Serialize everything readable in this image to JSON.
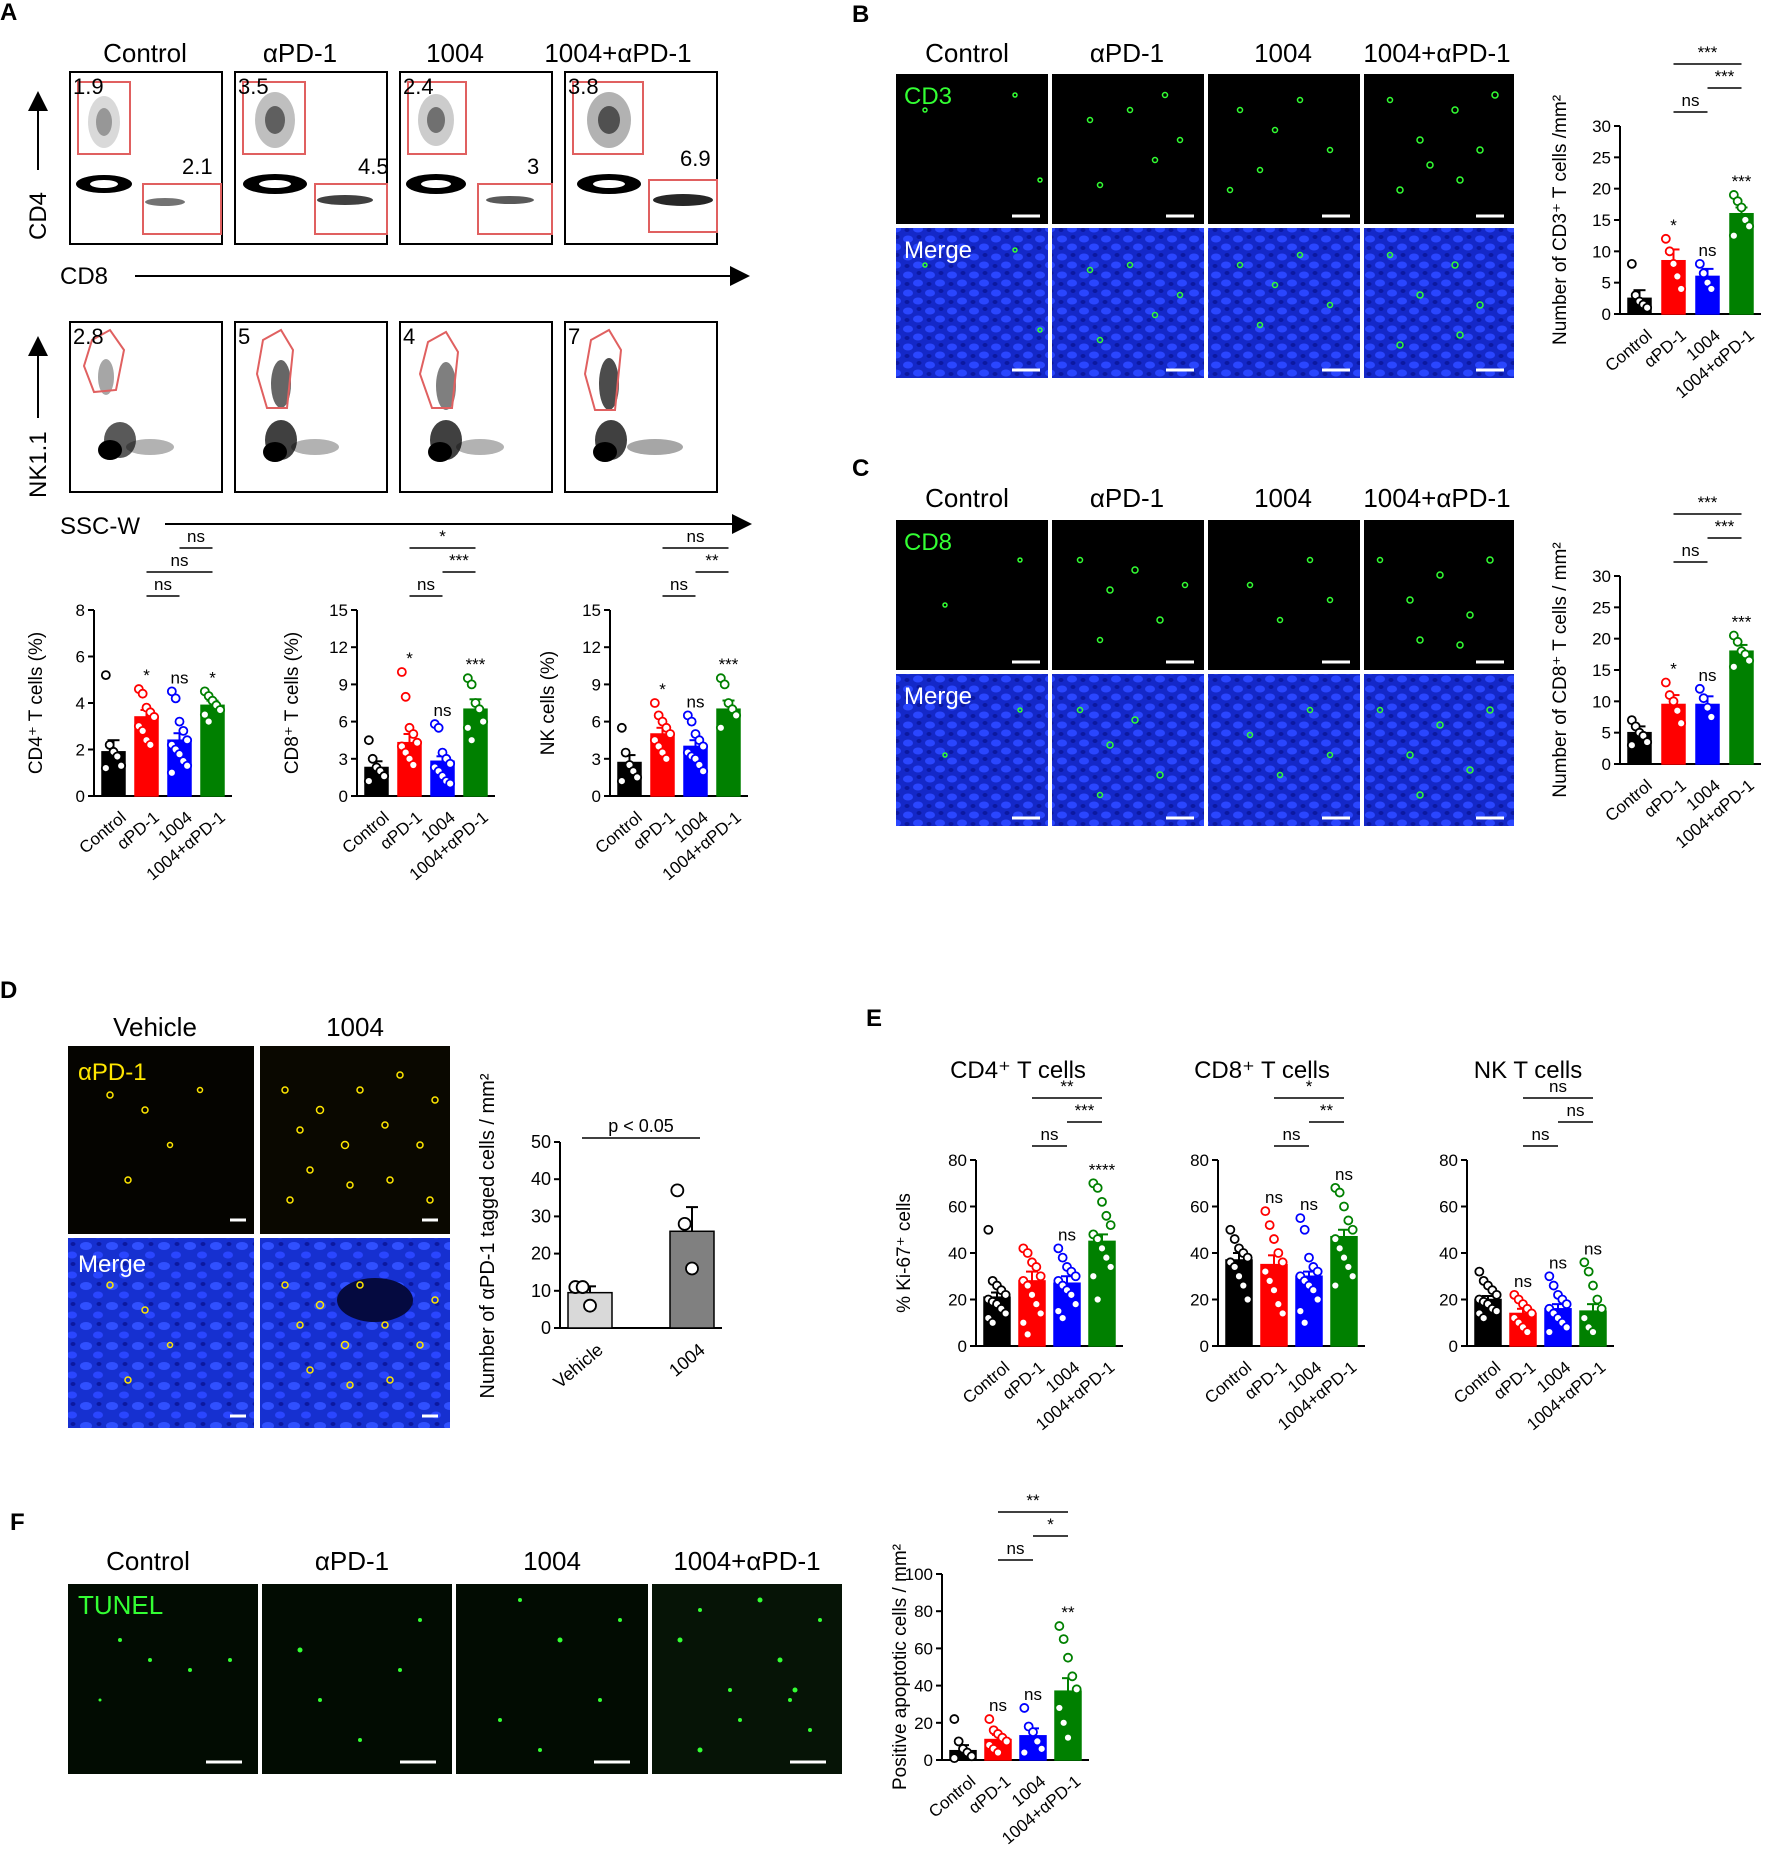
{
  "panels": {
    "A": {
      "letter": "A",
      "groups": [
        "Control",
        "αPD-1",
        "1004",
        "1004+αPD-1"
      ],
      "row1": {
        "y_label": "CD4",
        "x_label": "CD8",
        "cd4_pct": [
          "1.9",
          "3.5",
          "2.4",
          "3.8"
        ],
        "cd8_pct": [
          "2.1",
          "4.5",
          "3",
          "6.9"
        ]
      },
      "row2": {
        "y_label": "NK1.1",
        "x_label": "SSC-W",
        "nk_pct": [
          "2.8",
          "5",
          "4",
          "7"
        ]
      }
    },
    "B": {
      "letter": "B",
      "groups": [
        "Control",
        "αPD-1",
        "1004",
        "1004+αPD-1"
      ],
      "stain": "CD3",
      "merge": "Merge"
    },
    "C": {
      "letter": "C",
      "groups": [
        "Control",
        "αPD-1",
        "1004",
        "1004+αPD-1"
      ],
      "stain": "CD8",
      "merge": "Merge"
    },
    "D": {
      "letter": "D",
      "groups": [
        "Vehicle",
        "1004"
      ],
      "stain": "αPD-1",
      "merge": "Merge"
    },
    "E": {
      "letter": "E"
    },
    "F": {
      "letter": "F",
      "groups": [
        "Control",
        "αPD-1",
        "1004",
        "1004+αPD-1"
      ],
      "stain": "TUNEL"
    }
  },
  "colors": {
    "control": "#000000",
    "aPD1": "#ff0000",
    "c1004": "#0000ff",
    "combo": "#008000",
    "vehicle": "#d9d9d9",
    "c1004_gray": "#808080",
    "gate": "#e06060",
    "nuclei": "#1a2fd0",
    "green_stain": "#33ff33",
    "yellow_stain": "#ffe600"
  },
  "chart_data": [
    {
      "id": "A-CD4",
      "type": "bar",
      "categories": [
        "Control",
        "αPD-1",
        "1004",
        "1004+αPD-1"
      ],
      "values": [
        1.9,
        3.4,
        2.4,
        3.9
      ],
      "errors": [
        0.5,
        0.3,
        0.3,
        0.2
      ],
      "ylabel": "CD4⁺ T cells (%)",
      "ylim": [
        0,
        8
      ],
      "yticks": [
        "0",
        "2",
        "4",
        "6",
        "8"
      ],
      "stars": [
        "",
        "*",
        "ns",
        "*"
      ],
      "brackets": [
        {
          "from": 2,
          "to": 3,
          "label": "ns",
          "level": 3
        },
        {
          "from": 1,
          "to": 3,
          "label": "ns",
          "level": 2
        },
        {
          "from": 1,
          "to": 2,
          "label": "ns",
          "level": 1
        }
      ],
      "points": [
        [
          5.2,
          2.2,
          1.9,
          1.7,
          1.3,
          1.2
        ],
        [
          4.6,
          4.4,
          3.8,
          3.6,
          3.4,
          3.0,
          2.8,
          2.4,
          2.2
        ],
        [
          4.5,
          4.2,
          3.2,
          2.8,
          2.4,
          2.2,
          2.0,
          1.8,
          1.5,
          1.3,
          1.0
        ],
        [
          4.5,
          4.3,
          4.1,
          3.9,
          3.7,
          3.5,
          3.2
        ]
      ]
    },
    {
      "id": "A-CD8",
      "type": "bar",
      "categories": [
        "Control",
        "αPD-1",
        "1004",
        "1004+αPD-1"
      ],
      "values": [
        2.3,
        4.3,
        2.8,
        7.0
      ],
      "errors": [
        0.5,
        0.7,
        0.4,
        0.8
      ],
      "ylabel": "CD8⁺ T cells (%)",
      "ylim": [
        0,
        15
      ],
      "yticks": [
        "0",
        "3",
        "6",
        "9",
        "12",
        "15"
      ],
      "stars": [
        "",
        "*",
        "ns",
        "***"
      ],
      "brackets": [
        {
          "from": 1,
          "to": 3,
          "label": "*",
          "level": 3
        },
        {
          "from": 2,
          "to": 3,
          "label": "***",
          "level": 2
        },
        {
          "from": 1,
          "to": 2,
          "label": "ns",
          "level": 1
        }
      ],
      "points": [
        [
          4.5,
          3.0,
          2.3,
          2.0,
          1.6,
          1.2
        ],
        [
          10.0,
          8.0,
          5.5,
          5.0,
          4.3,
          4.0,
          3.5,
          3.0,
          2.5
        ],
        [
          5.8,
          5.5,
          3.5,
          3.0,
          2.6,
          2.3,
          2.0,
          1.6,
          1.2,
          1.0
        ],
        [
          9.5,
          9.0,
          7.5,
          7.0,
          6.0,
          5.5,
          4.5
        ]
      ]
    },
    {
      "id": "A-NK",
      "type": "bar",
      "categories": [
        "Control",
        "αPD-1",
        "1004",
        "1004+αPD-1"
      ],
      "values": [
        2.7,
        5.0,
        4.0,
        7.0
      ],
      "errors": [
        0.6,
        0.5,
        0.5,
        0.7
      ],
      "ylabel": "NK cells (%)",
      "ylim": [
        0,
        15
      ],
      "yticks": [
        "0",
        "3",
        "6",
        "9",
        "12",
        "15"
      ],
      "stars": [
        "",
        "*",
        "ns",
        "***"
      ],
      "brackets": [
        {
          "from": 1,
          "to": 3,
          "label": "ns",
          "level": 3
        },
        {
          "from": 2,
          "to": 3,
          "label": "**",
          "level": 2
        },
        {
          "from": 1,
          "to": 2,
          "label": "ns",
          "level": 1
        }
      ],
      "points": [
        [
          5.5,
          3.5,
          2.5,
          2.0,
          1.5,
          1.2
        ],
        [
          7.5,
          6.5,
          6.0,
          5.5,
          5.0,
          4.5,
          4.0,
          3.5,
          3.0
        ],
        [
          6.5,
          6.0,
          5.0,
          4.5,
          4.0,
          3.5,
          3.2,
          3.0,
          2.5,
          2.0
        ],
        [
          9.5,
          9.0,
          7.5,
          7.0,
          6.5,
          5.5
        ]
      ]
    },
    {
      "id": "B-CD3",
      "type": "bar",
      "categories": [
        "Control",
        "αPD-1",
        "1004",
        "1004+αPD-1"
      ],
      "values": [
        2.5,
        8.5,
        6.0,
        16.0
      ],
      "errors": [
        1.3,
        1.8,
        1.2,
        1.0
      ],
      "ylabel": "Number of CD3⁺ T cells /mm²",
      "ylim": [
        0,
        30
      ],
      "yticks": [
        "0",
        "5",
        "10",
        "15",
        "20",
        "25",
        "30"
      ],
      "stars": [
        "",
        "*",
        "ns",
        "***"
      ],
      "brackets": [
        {
          "from": 1,
          "to": 3,
          "label": "***",
          "level": 3
        },
        {
          "from": 2,
          "to": 3,
          "label": "***",
          "level": 2
        },
        {
          "from": 1,
          "to": 2,
          "label": "ns",
          "level": 1
        }
      ],
      "points": [
        [
          8.0,
          3.0,
          2.0,
          1.5,
          1.0
        ],
        [
          12.0,
          10.0,
          8.0,
          6.0,
          4.0
        ],
        [
          8.0,
          6.5,
          5.0,
          4.0
        ],
        [
          19.0,
          18.0,
          17.0,
          15.0,
          14.0,
          12.5
        ]
      ]
    },
    {
      "id": "C-CD8",
      "type": "bar",
      "categories": [
        "Control",
        "αPD-1",
        "1004",
        "1004+αPD-1"
      ],
      "values": [
        5.0,
        9.5,
        9.5,
        18.0
      ],
      "errors": [
        1.0,
        1.5,
        1.3,
        1.0
      ],
      "ylabel": "Number of CD8⁺ T cells / mm²",
      "ylim": [
        0,
        30
      ],
      "yticks": [
        "0",
        "5",
        "10",
        "15",
        "20",
        "25",
        "30"
      ],
      "stars": [
        "",
        "*",
        "ns",
        "***"
      ],
      "brackets": [
        {
          "from": 1,
          "to": 3,
          "label": "***",
          "level": 3
        },
        {
          "from": 2,
          "to": 3,
          "label": "***",
          "level": 2
        },
        {
          "from": 1,
          "to": 2,
          "label": "ns",
          "level": 1
        }
      ],
      "points": [
        [
          7.0,
          6.0,
          5.0,
          4.5,
          3.5,
          3.0
        ],
        [
          13.0,
          11.0,
          10.0,
          8.5,
          6.5
        ],
        [
          12.0,
          10.5,
          9.0,
          7.5
        ],
        [
          20.5,
          19.5,
          18.0,
          17.5,
          16.5,
          15.5
        ]
      ]
    },
    {
      "id": "D-aPD1",
      "type": "bar",
      "categories": [
        "Vehicle",
        "1004"
      ],
      "values": [
        9.5,
        26.0
      ],
      "errors": [
        1.7,
        6.5
      ],
      "ylabel": "Number of αPD-1 tagged cells / mm²",
      "ylim": [
        0,
        50
      ],
      "yticks": [
        "0",
        "10",
        "20",
        "30",
        "40",
        "50"
      ],
      "stars": [
        "",
        ""
      ],
      "brackets": [
        {
          "from": 0,
          "to": 1,
          "label": "p < 0.05",
          "level": 1
        }
      ],
      "points": [
        [
          11.0,
          11.0,
          6.0
        ],
        [
          37.0,
          28.0,
          16.0
        ]
      ]
    },
    {
      "id": "E-CD4",
      "type": "bar",
      "title": "CD4⁺ T cells",
      "categories": [
        "Control",
        "αPD-1",
        "1004",
        "1004+αPD-1"
      ],
      "values": [
        21,
        28,
        27,
        45
      ],
      "errors": [
        2,
        4,
        3,
        3
      ],
      "ylabel": "% Ki-67⁺ cells",
      "ylim": [
        0,
        80
      ],
      "yticks": [
        "0",
        "20",
        "40",
        "60",
        "80"
      ],
      "stars": [
        "",
        "",
        "ns",
        "****"
      ],
      "brackets": [
        {
          "from": 1,
          "to": 3,
          "label": "**",
          "level": 3
        },
        {
          "from": 2,
          "to": 3,
          "label": "***",
          "level": 2
        },
        {
          "from": 1,
          "to": 2,
          "label": "ns",
          "level": 1
        }
      ],
      "points": [
        [
          50,
          28,
          26,
          24,
          22,
          20,
          19,
          18,
          16,
          14,
          12,
          10
        ],
        [
          42,
          40,
          36,
          34,
          30,
          28,
          26,
          22,
          18,
          14,
          10,
          5
        ],
        [
          42,
          38,
          34,
          32,
          30,
          28,
          26,
          24,
          22,
          18,
          15,
          12
        ],
        [
          70,
          68,
          62,
          56,
          52,
          48,
          46,
          42,
          38,
          34,
          30,
          20
        ]
      ]
    },
    {
      "id": "E-CD8",
      "type": "bar",
      "title": "CD8⁺ T cells",
      "categories": [
        "Control",
        "αPD-1",
        "1004",
        "1004+αPD-1"
      ],
      "values": [
        37,
        35,
        30,
        47
      ],
      "errors": [
        3,
        4,
        2,
        3
      ],
      "ylabel": "",
      "ylim": [
        0,
        80
      ],
      "yticks": [
        "0",
        "20",
        "40",
        "60",
        "80"
      ],
      "stars": [
        "",
        "ns",
        "ns",
        "ns"
      ],
      "brackets": [
        {
          "from": 1,
          "to": 3,
          "label": "*",
          "level": 3
        },
        {
          "from": 2,
          "to": 3,
          "label": "**",
          "level": 2
        },
        {
          "from": 1,
          "to": 2,
          "label": "ns",
          "level": 1
        }
      ],
      "points": [
        [
          50,
          46,
          42,
          40,
          38,
          36,
          34,
          30,
          26,
          20
        ],
        [
          58,
          52,
          46,
          40,
          36,
          32,
          28,
          24,
          18,
          14
        ],
        [
          55,
          50,
          38,
          34,
          32,
          30,
          28,
          26,
          24,
          20,
          15,
          10
        ],
        [
          68,
          66,
          60,
          54,
          50,
          46,
          42,
          38,
          34,
          30,
          26
        ]
      ]
    },
    {
      "id": "E-NK",
      "type": "bar",
      "title": "NK T cells",
      "categories": [
        "Control",
        "αPD-1",
        "1004",
        "1004+αPD-1"
      ],
      "values": [
        20,
        14,
        16,
        15
      ],
      "errors": [
        1.5,
        2,
        2,
        3
      ],
      "ylabel": "",
      "ylim": [
        0,
        80
      ],
      "yticks": [
        "0",
        "20",
        "40",
        "60",
        "80"
      ],
      "stars": [
        "",
        "ns",
        "ns",
        "ns"
      ],
      "brackets": [
        {
          "from": 1,
          "to": 3,
          "label": "ns",
          "level": 3
        },
        {
          "from": 2,
          "to": 3,
          "label": "ns",
          "level": 2
        },
        {
          "from": 1,
          "to": 2,
          "label": "ns",
          "level": 1
        }
      ],
      "points": [
        [
          32,
          28,
          26,
          24,
          22,
          20,
          19,
          18,
          16,
          15,
          14,
          12
        ],
        [
          22,
          20,
          18,
          16,
          14,
          12,
          10,
          8,
          6
        ],
        [
          30,
          26,
          22,
          20,
          18,
          16,
          14,
          12,
          10,
          8,
          6
        ],
        [
          36,
          32,
          26,
          20,
          16,
          12,
          8,
          6
        ]
      ]
    },
    {
      "id": "F-TUNEL",
      "type": "bar",
      "categories": [
        "Control",
        "αPD-1",
        "1004",
        "1004+αPD-1"
      ],
      "values": [
        5,
        11,
        13,
        37
      ],
      "errors": [
        3,
        2.5,
        4,
        7
      ],
      "ylabel": "Positive apoptotic cells / mm²",
      "ylim": [
        0,
        100
      ],
      "yticks": [
        "0",
        "20",
        "40",
        "60",
        "80",
        "100"
      ],
      "stars": [
        "",
        "ns",
        "ns",
        "**"
      ],
      "brackets": [
        {
          "from": 1,
          "to": 3,
          "label": "**",
          "level": 3
        },
        {
          "from": 2,
          "to": 3,
          "label": "*",
          "level": 2
        },
        {
          "from": 1,
          "to": 2,
          "label": "ns",
          "level": 1
        }
      ],
      "points": [
        [
          22,
          10,
          6,
          4,
          2,
          1
        ],
        [
          22,
          16,
          14,
          12,
          10,
          8,
          6,
          4
        ],
        [
          28,
          18,
          15,
          10,
          6,
          4
        ],
        [
          72,
          65,
          55,
          45,
          38,
          28,
          20,
          12
        ]
      ]
    }
  ]
}
